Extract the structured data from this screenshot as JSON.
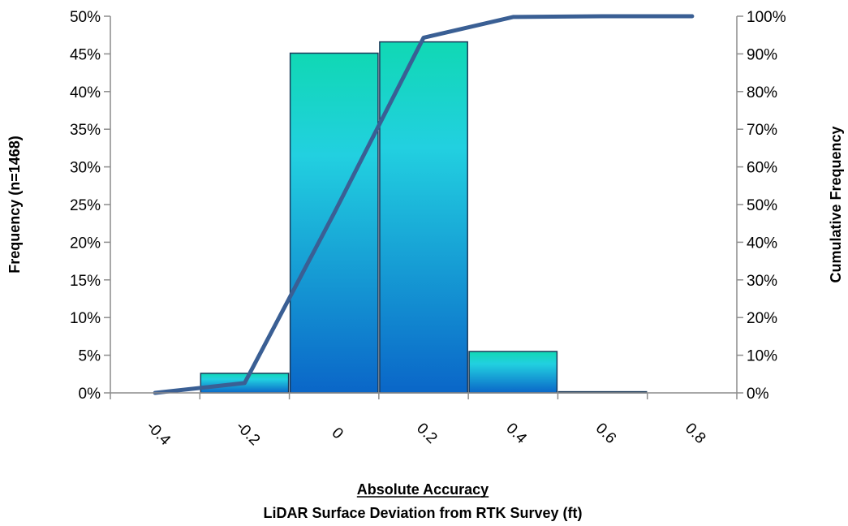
{
  "chart_data": {
    "type": "bar",
    "categories": [
      "-0.4",
      "-0.2",
      "0",
      "0.2",
      "0.4",
      "0.6",
      "0.8"
    ],
    "frequency_values": [
      0,
      2.6,
      45.1,
      46.6,
      5.5,
      0.15,
      0
    ],
    "cumulative_values": [
      0,
      2.6,
      47.7,
      94.3,
      99.8,
      100,
      100
    ],
    "series": [
      {
        "name": "Frequency",
        "axis": "left",
        "type": "bar",
        "values": [
          0,
          2.6,
          45.1,
          46.6,
          5.5,
          0.15,
          0
        ]
      },
      {
        "name": "Cumulative Frequency",
        "axis": "right",
        "type": "line",
        "values": [
          0,
          2.6,
          47.7,
          94.3,
          99.8,
          100,
          100
        ]
      }
    ],
    "ylabel": "Frequency (n=1468)",
    "y2label": "Cumulative Frequency",
    "xlabel": "Absolute Accuracy",
    "xlabel2": "LiDAR Surface Deviation from RTK Survey (ft)",
    "ylim": [
      0,
      50
    ],
    "y2lim": [
      0,
      100
    ],
    "yticks": [
      "0%",
      "5%",
      "10%",
      "15%",
      "20%",
      "25%",
      "30%",
      "35%",
      "40%",
      "45%",
      "50%"
    ],
    "y2ticks": [
      "0%",
      "10%",
      "20%",
      "30%",
      "40%",
      "50%",
      "60%",
      "70%",
      "80%",
      "90%",
      "100%"
    ],
    "colors": {
      "bar_top": "#10d8b4",
      "bar_mid": "#22d0e0",
      "bar_bottom": "#0a66c8",
      "bar_stroke": "#1c3a5a",
      "line": "#3a5f94",
      "axis": "#8c8c8c"
    },
    "legend": "none",
    "grid": false
  }
}
